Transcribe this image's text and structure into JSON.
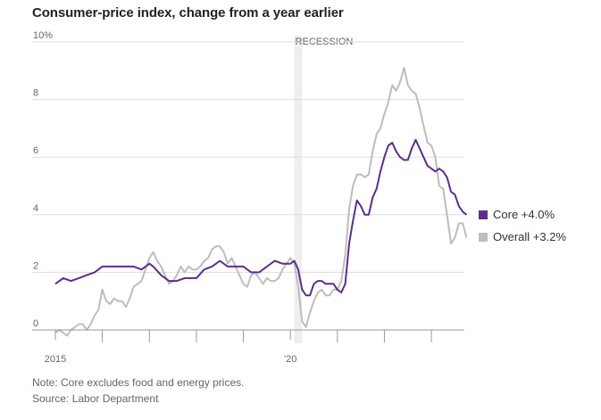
{
  "title": "Consumer-price index, change from a year earlier",
  "notes": {
    "note": "Note: Core excludes food and energy prices.",
    "source": "Source: Labor Department"
  },
  "colors": {
    "core": "#5b2e8c",
    "overall": "#bdbdbd",
    "recession": "#eeeeee",
    "grid": "#dddddd",
    "axis": "#999999"
  },
  "chart_data": {
    "type": "line",
    "x_start": "2015-01",
    "x_end": "2023-06",
    "ylim": [
      0,
      10
    ],
    "y_ticks": [
      {
        "value": 0,
        "label": "0"
      },
      {
        "value": 2,
        "label": "2"
      },
      {
        "value": 4,
        "label": "4"
      },
      {
        "value": 6,
        "label": "6"
      },
      {
        "value": 8,
        "label": "8"
      },
      {
        "value": 10,
        "label": "10%"
      }
    ],
    "x_tick_labels": [
      {
        "date": "2015-01",
        "label": "2015"
      },
      {
        "date": "2020-01",
        "label": "'20"
      }
    ],
    "x_minor_ticks": [
      "2016-01",
      "2017-01",
      "2018-01",
      "2019-01",
      "2021-01",
      "2022-01",
      "2023-01"
    ],
    "recession": {
      "label": "RECESSION",
      "start": "2020-02",
      "end": "2020-04"
    },
    "series": [
      {
        "name": "Core",
        "legend": "Core +4.0%",
        "points": [
          [
            "2015-01",
            1.6
          ],
          [
            "2015-03",
            1.8
          ],
          [
            "2015-05",
            1.7
          ],
          [
            "2015-07",
            1.8
          ],
          [
            "2015-09",
            1.9
          ],
          [
            "2015-11",
            2.0
          ],
          [
            "2016-01",
            2.2
          ],
          [
            "2016-03",
            2.2
          ],
          [
            "2016-05",
            2.2
          ],
          [
            "2016-07",
            2.2
          ],
          [
            "2016-09",
            2.2
          ],
          [
            "2016-11",
            2.1
          ],
          [
            "2017-01",
            2.3
          ],
          [
            "2017-02",
            2.2
          ],
          [
            "2017-04",
            1.9
          ],
          [
            "2017-06",
            1.7
          ],
          [
            "2017-08",
            1.7
          ],
          [
            "2017-10",
            1.8
          ],
          [
            "2017-12",
            1.8
          ],
          [
            "2018-01",
            1.8
          ],
          [
            "2018-03",
            2.1
          ],
          [
            "2018-05",
            2.2
          ],
          [
            "2018-07",
            2.4
          ],
          [
            "2018-09",
            2.2
          ],
          [
            "2018-11",
            2.2
          ],
          [
            "2019-01",
            2.2
          ],
          [
            "2019-03",
            2.0
          ],
          [
            "2019-05",
            2.0
          ],
          [
            "2019-07",
            2.2
          ],
          [
            "2019-09",
            2.4
          ],
          [
            "2019-11",
            2.3
          ],
          [
            "2020-01",
            2.3
          ],
          [
            "2020-02",
            2.4
          ],
          [
            "2020-03",
            2.1
          ],
          [
            "2020-04",
            1.4
          ],
          [
            "2020-05",
            1.2
          ],
          [
            "2020-06",
            1.2
          ],
          [
            "2020-07",
            1.6
          ],
          [
            "2020-08",
            1.7
          ],
          [
            "2020-09",
            1.7
          ],
          [
            "2020-10",
            1.6
          ],
          [
            "2020-11",
            1.6
          ],
          [
            "2020-12",
            1.6
          ],
          [
            "2021-01",
            1.4
          ],
          [
            "2021-02",
            1.3
          ],
          [
            "2021-03",
            1.6
          ],
          [
            "2021-04",
            3.0
          ],
          [
            "2021-05",
            3.8
          ],
          [
            "2021-06",
            4.5
          ],
          [
            "2021-07",
            4.3
          ],
          [
            "2021-08",
            4.0
          ],
          [
            "2021-09",
            4.0
          ],
          [
            "2021-10",
            4.6
          ],
          [
            "2021-11",
            4.9
          ],
          [
            "2021-12",
            5.5
          ],
          [
            "2022-01",
            6.0
          ],
          [
            "2022-02",
            6.4
          ],
          [
            "2022-03",
            6.5
          ],
          [
            "2022-04",
            6.2
          ],
          [
            "2022-05",
            6.0
          ],
          [
            "2022-06",
            5.9
          ],
          [
            "2022-07",
            5.9
          ],
          [
            "2022-08",
            6.3
          ],
          [
            "2022-09",
            6.6
          ],
          [
            "2022-10",
            6.3
          ],
          [
            "2022-11",
            6.0
          ],
          [
            "2022-12",
            5.7
          ],
          [
            "2023-01",
            5.6
          ],
          [
            "2023-02",
            5.5
          ],
          [
            "2023-03",
            5.6
          ],
          [
            "2023-04",
            5.5
          ],
          [
            "2023-05",
            5.3
          ],
          [
            "2023-06",
            4.8
          ],
          [
            "2023-07",
            4.7
          ],
          [
            "2023-08",
            4.3
          ],
          [
            "2023-09",
            4.1
          ],
          [
            "2023-10",
            4.0
          ]
        ]
      },
      {
        "name": "Overall",
        "legend": "Overall +3.2%",
        "points": [
          [
            "2015-01",
            -0.1
          ],
          [
            "2015-02",
            0.0
          ],
          [
            "2015-03",
            -0.1
          ],
          [
            "2015-04",
            -0.2
          ],
          [
            "2015-05",
            0.0
          ],
          [
            "2015-06",
            0.1
          ],
          [
            "2015-07",
            0.2
          ],
          [
            "2015-08",
            0.2
          ],
          [
            "2015-09",
            0.0
          ],
          [
            "2015-10",
            0.2
          ],
          [
            "2015-11",
            0.5
          ],
          [
            "2015-12",
            0.7
          ],
          [
            "2016-01",
            1.4
          ],
          [
            "2016-02",
            1.0
          ],
          [
            "2016-03",
            0.9
          ],
          [
            "2016-04",
            1.1
          ],
          [
            "2016-05",
            1.0
          ],
          [
            "2016-06",
            1.0
          ],
          [
            "2016-07",
            0.8
          ],
          [
            "2016-08",
            1.1
          ],
          [
            "2016-09",
            1.5
          ],
          [
            "2016-10",
            1.6
          ],
          [
            "2016-11",
            1.7
          ],
          [
            "2016-12",
            2.1
          ],
          [
            "2017-01",
            2.5
          ],
          [
            "2017-02",
            2.7
          ],
          [
            "2017-03",
            2.4
          ],
          [
            "2017-04",
            2.2
          ],
          [
            "2017-05",
            1.9
          ],
          [
            "2017-06",
            1.6
          ],
          [
            "2017-07",
            1.7
          ],
          [
            "2017-08",
            1.9
          ],
          [
            "2017-09",
            2.2
          ],
          [
            "2017-10",
            2.0
          ],
          [
            "2017-11",
            2.2
          ],
          [
            "2017-12",
            2.1
          ],
          [
            "2018-01",
            2.1
          ],
          [
            "2018-02",
            2.2
          ],
          [
            "2018-03",
            2.4
          ],
          [
            "2018-04",
            2.5
          ],
          [
            "2018-05",
            2.8
          ],
          [
            "2018-06",
            2.9
          ],
          [
            "2018-07",
            2.9
          ],
          [
            "2018-08",
            2.7
          ],
          [
            "2018-09",
            2.3
          ],
          [
            "2018-10",
            2.5
          ],
          [
            "2018-11",
            2.2
          ],
          [
            "2018-12",
            1.9
          ],
          [
            "2019-01",
            1.6
          ],
          [
            "2019-02",
            1.5
          ],
          [
            "2019-03",
            1.9
          ],
          [
            "2019-04",
            2.0
          ],
          [
            "2019-05",
            1.8
          ],
          [
            "2019-06",
            1.6
          ],
          [
            "2019-07",
            1.8
          ],
          [
            "2019-08",
            1.7
          ],
          [
            "2019-09",
            1.7
          ],
          [
            "2019-10",
            1.8
          ],
          [
            "2019-11",
            2.1
          ],
          [
            "2019-12",
            2.3
          ],
          [
            "2020-01",
            2.5
          ],
          [
            "2020-02",
            2.3
          ],
          [
            "2020-03",
            1.5
          ],
          [
            "2020-04",
            0.3
          ],
          [
            "2020-05",
            0.1
          ],
          [
            "2020-06",
            0.6
          ],
          [
            "2020-07",
            1.0
          ],
          [
            "2020-08",
            1.3
          ],
          [
            "2020-09",
            1.4
          ],
          [
            "2020-10",
            1.2
          ],
          [
            "2020-11",
            1.2
          ],
          [
            "2020-12",
            1.4
          ],
          [
            "2021-01",
            1.4
          ],
          [
            "2021-02",
            1.7
          ],
          [
            "2021-03",
            2.6
          ],
          [
            "2021-04",
            4.2
          ],
          [
            "2021-05",
            5.0
          ],
          [
            "2021-06",
            5.4
          ],
          [
            "2021-07",
            5.4
          ],
          [
            "2021-08",
            5.3
          ],
          [
            "2021-09",
            5.4
          ],
          [
            "2021-10",
            6.2
          ],
          [
            "2021-11",
            6.8
          ],
          [
            "2021-12",
            7.0
          ],
          [
            "2022-01",
            7.5
          ],
          [
            "2022-02",
            7.9
          ],
          [
            "2022-03",
            8.5
          ],
          [
            "2022-04",
            8.3
          ],
          [
            "2022-05",
            8.6
          ],
          [
            "2022-06",
            9.1
          ],
          [
            "2022-07",
            8.5
          ],
          [
            "2022-08",
            8.3
          ],
          [
            "2022-09",
            8.2
          ],
          [
            "2022-10",
            7.7
          ],
          [
            "2022-11",
            7.1
          ],
          [
            "2022-12",
            6.5
          ],
          [
            "2023-01",
            6.4
          ],
          [
            "2023-02",
            6.0
          ],
          [
            "2023-03",
            5.0
          ],
          [
            "2023-04",
            4.9
          ],
          [
            "2023-05",
            4.0
          ],
          [
            "2023-06",
            3.0
          ],
          [
            "2023-07",
            3.2
          ],
          [
            "2023-08",
            3.7
          ],
          [
            "2023-09",
            3.7
          ],
          [
            "2023-10",
            3.2
          ]
        ]
      }
    ]
  }
}
